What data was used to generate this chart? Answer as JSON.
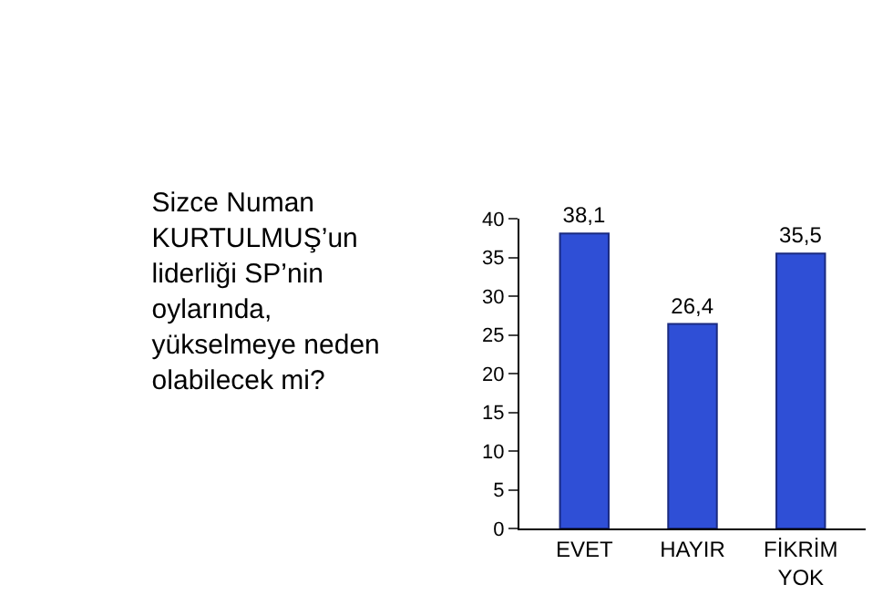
{
  "chart_data": {
    "type": "bar",
    "title": "Sizce Numan KURTULMUŞ’un liderliği SP’nin oylarında, yükselmeye neden olabilecek mi?",
    "categories": [
      "EVET",
      "HAYIR",
      "FİKRİM YOK"
    ],
    "values": [
      38.1,
      26.4,
      35.5
    ],
    "value_labels": [
      "38,1",
      "26,4",
      "35,5"
    ],
    "color": "#2f4fd6",
    "ylim": [
      0,
      40
    ],
    "yticks": [
      0,
      5,
      10,
      15,
      20,
      25,
      30,
      35,
      40
    ]
  }
}
